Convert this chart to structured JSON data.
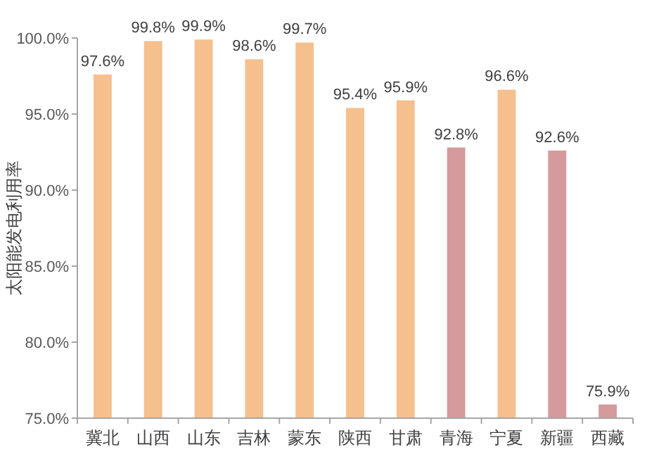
{
  "chart_data": {
    "type": "bar",
    "ylabel": "太阳能发电利用率",
    "categories": [
      "冀北",
      "山西",
      "山东",
      "吉林",
      "蒙东",
      "陕西",
      "甘肃",
      "青海",
      "宁夏",
      "新疆",
      "西藏"
    ],
    "values": [
      97.6,
      99.8,
      99.9,
      98.6,
      99.7,
      95.4,
      95.9,
      92.8,
      96.6,
      92.6,
      75.9
    ],
    "value_labels": [
      "97.6%",
      "99.8%",
      "99.9%",
      "98.6%",
      "99.7%",
      "95.4%",
      "95.9%",
      "92.8%",
      "96.6%",
      "92.6%",
      "75.9%"
    ],
    "colors": [
      "#f5bf8e",
      "#f5bf8e",
      "#f5bf8e",
      "#f5bf8e",
      "#f5bf8e",
      "#f5bf8e",
      "#f5bf8e",
      "#d49a9c",
      "#f5bf8e",
      "#d49a9c",
      "#d49a9c"
    ],
    "ylim": [
      75,
      100
    ],
    "yticks": [
      {
        "value": 75,
        "label": "75.0%"
      },
      {
        "value": 80,
        "label": "80.0%"
      },
      {
        "value": 85,
        "label": "85.0%"
      },
      {
        "value": 90,
        "label": "90.0%"
      },
      {
        "value": 95,
        "label": "95.0%"
      },
      {
        "value": 100,
        "label": "100.0%"
      }
    ],
    "grid": false
  }
}
